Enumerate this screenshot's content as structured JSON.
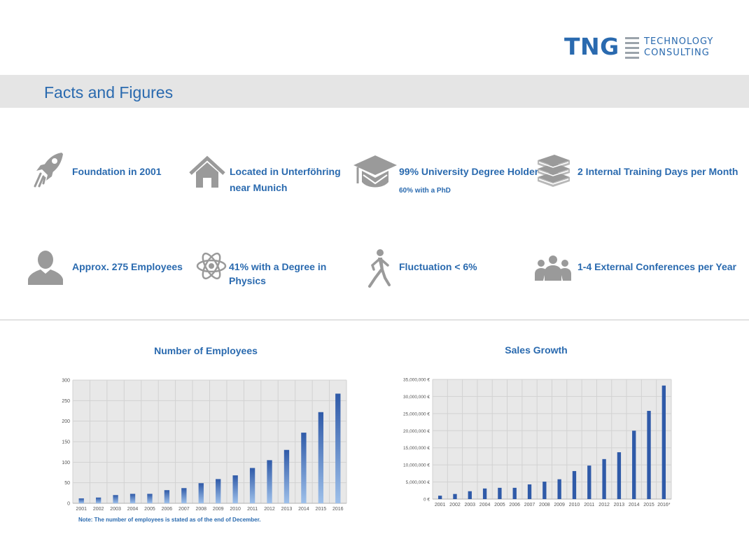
{
  "logo": {
    "mark": "TNG",
    "line1": "TECHNOLOGY",
    "line2": "CONSULTING"
  },
  "page_title": "Facts and Figures",
  "facts": [
    {
      "icon": "rocket-icon",
      "label": "Foundation in 2001"
    },
    {
      "icon": "house-icon",
      "label_line1": "Located in Unterföhring",
      "label_line2": "near Munich"
    },
    {
      "icon": "graduation-cap-icon",
      "label": "99% University Degree Holder",
      "sub": "60% with a PhD"
    },
    {
      "icon": "books-icon",
      "label": "2 Internal Training Days per Month"
    },
    {
      "icon": "person-icon",
      "label": "Approx. 275 Employees"
    },
    {
      "icon": "atom-icon",
      "label_line1": "41% with a Degree in",
      "label_line2": "Physics"
    },
    {
      "icon": "walking-person-icon",
      "label": "Fluctuation < 6%"
    },
    {
      "icon": "group-icon",
      "label": "1-4 External Conferences per Year"
    }
  ],
  "colors": {
    "accent": "#2a6aaf",
    "bar_dark": "#2f5aa8",
    "bar_light": "#9ec0ea",
    "plot_bg": "#e8e8e8",
    "icon_gray": "#9a9a9a"
  },
  "chart_data": [
    {
      "type": "bar",
      "title": "Number of Employees",
      "xlabel": "",
      "ylabel": "",
      "categories": [
        "2001",
        "2002",
        "2003",
        "2004",
        "2005",
        "2006",
        "2007",
        "2008",
        "2009",
        "2010",
        "2011",
        "2012",
        "2013",
        "2014",
        "2015",
        "2016"
      ],
      "values": [
        12,
        14,
        20,
        23,
        23,
        32,
        37,
        49,
        59,
        68,
        86,
        105,
        130,
        172,
        222,
        267
      ],
      "ylim": [
        0,
        300
      ],
      "yticks": [
        "0",
        "50",
        "100",
        "150",
        "200",
        "250",
        "300"
      ],
      "grid": true,
      "note": "Note: The number of employees is stated as of the end of December."
    },
    {
      "type": "bar",
      "title": "Sales Growth",
      "xlabel": "",
      "ylabel": "",
      "categories": [
        "2001",
        "2002",
        "2003",
        "2004",
        "2005",
        "2006",
        "2007",
        "2008",
        "2009",
        "2010",
        "2011",
        "2012",
        "2013",
        "2014",
        "2015",
        "2016*"
      ],
      "values": [
        1000000,
        1500000,
        2300000,
        3100000,
        3300000,
        3300000,
        4300000,
        5100000,
        5800000,
        8200000,
        9800000,
        11700000,
        13700000,
        20000000,
        25800000,
        33200000
      ],
      "ylim": [
        0,
        35000000
      ],
      "yticks": [
        "0 €",
        "5,000,000 €",
        "10,000,000 €",
        "15,000,000 €",
        "20,000,000 €",
        "25,000,000 €",
        "30,000,000 €",
        "35,000,000 €"
      ],
      "grid": true
    }
  ]
}
